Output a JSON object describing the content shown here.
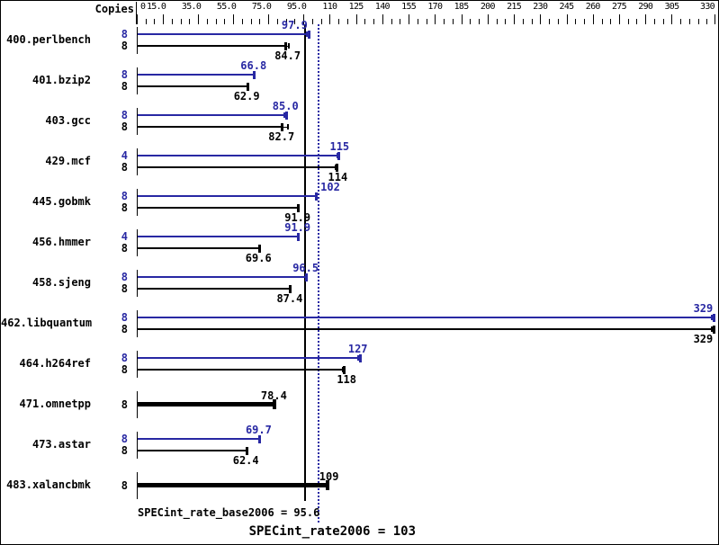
{
  "header": {
    "copies_label": "Copies"
  },
  "chart_data": {
    "type": "bar",
    "orientation": "horizontal",
    "title": "",
    "xlabel": "",
    "ylabel": "Copies",
    "xlim": [
      0,
      330
    ],
    "grid": false,
    "axis": {
      "major_tick_values": [
        0,
        15,
        35,
        55,
        75,
        95,
        110,
        125,
        140,
        155,
        170,
        185,
        200,
        215,
        230,
        245,
        260,
        275,
        290,
        305,
        330
      ],
      "major_tick_labels": [
        "0",
        "15.0",
        "35.0",
        "55.0",
        "75.0",
        "95.0",
        "110",
        "125",
        "140",
        "155",
        "170",
        "185",
        "200",
        "215",
        "230",
        "245",
        "260",
        "275",
        "290",
        "305",
        "330"
      ],
      "minor_tick_step": 5
    },
    "series_colors": {
      "peak": "#2828a3",
      "base": "#000000"
    },
    "benchmarks": [
      {
        "name": "400.perlbench",
        "bars": [
          {
            "series": "peak",
            "copies": "8",
            "value": 97.9,
            "label": "97.9",
            "spread": 96.6,
            "label_dx": -2
          },
          {
            "series": "base",
            "copies": "8",
            "value": 84.7,
            "label": "84.7",
            "spread": 86.4,
            "label_dx": 16
          }
        ]
      },
      {
        "name": "401.bzip2",
        "bars": [
          {
            "series": "peak",
            "copies": "8",
            "value": 66.8,
            "label": "66.8"
          },
          {
            "series": "base",
            "copies": "8",
            "value": 62.9,
            "label": "62.9"
          }
        ]
      },
      {
        "name": "403.gcc",
        "bars": [
          {
            "series": "peak",
            "copies": "8",
            "value": 85.0,
            "label": "85.0",
            "spread": 83.6
          },
          {
            "series": "base",
            "copies": "8",
            "value": 82.7,
            "label": "82.7",
            "spread": 85.7
          }
        ]
      },
      {
        "name": "429.mcf",
        "bars": [
          {
            "series": "peak",
            "copies": "4",
            "value": 115,
            "label": "115",
            "spread": 113.8,
            "label_dx": 11
          },
          {
            "series": "base",
            "copies": "8",
            "value": 114,
            "label": "114",
            "spread": 112.8,
            "label_dx": 11
          }
        ]
      },
      {
        "name": "445.gobmk",
        "bars": [
          {
            "series": "peak",
            "copies": "8",
            "value": 102,
            "label": "102",
            "label_dx": 26
          },
          {
            "series": "base",
            "copies": "8",
            "value": 91.9,
            "label": "91.9"
          }
        ]
      },
      {
        "name": "456.hmmer",
        "bars": [
          {
            "series": "peak",
            "copies": "4",
            "value": 91.9,
            "label": "91.9"
          },
          {
            "series": "base",
            "copies": "8",
            "value": 69.6,
            "label": "69.6"
          }
        ]
      },
      {
        "name": "458.sjeng",
        "bars": [
          {
            "series": "peak",
            "copies": "8",
            "value": 96.5,
            "label": "96.5"
          },
          {
            "series": "base",
            "copies": "8",
            "value": 87.4,
            "label": "87.4"
          }
        ]
      },
      {
        "name": "462.libquantum",
        "bars": [
          {
            "series": "peak",
            "copies": "8",
            "value": 329,
            "label": "329",
            "spread": 327.4,
            "label_dx": -2
          },
          {
            "series": "base",
            "copies": "8",
            "value": 329,
            "label": "329",
            "spread": 327.4,
            "label_dx": -2
          }
        ]
      },
      {
        "name": "464.h264ref",
        "bars": [
          {
            "series": "peak",
            "copies": "8",
            "value": 127,
            "label": "127",
            "spread": 125.6,
            "label_dx": 8
          },
          {
            "series": "base",
            "copies": "8",
            "value": 118,
            "label": "118",
            "spread": 116.8
          }
        ]
      },
      {
        "name": "471.omnetpp",
        "bars": [
          {
            "series": "base",
            "copies": "8",
            "value": 78.4,
            "label": "78.4",
            "thick": true
          }
        ]
      },
      {
        "name": "473.astar",
        "bars": [
          {
            "series": "peak",
            "copies": "8",
            "value": 69.7,
            "label": "69.7"
          },
          {
            "series": "base",
            "copies": "8",
            "value": 62.4,
            "label": "62.4"
          }
        ]
      },
      {
        "name": "483.xalancbmk",
        "bars": [
          {
            "series": "base",
            "copies": "8",
            "value": 109,
            "label": "109",
            "thick": true,
            "label_dx": 11
          }
        ]
      }
    ],
    "reference_lines": [
      {
        "id": "base",
        "text": "SPECint_rate_base2006 = 95.6",
        "value": 95.6,
        "style": "solid",
        "color": "#000000"
      },
      {
        "id": "peak",
        "text": "SPECint_rate2006 = 103",
        "value": 103,
        "style": "dotted",
        "color": "#2828a3"
      }
    ]
  }
}
